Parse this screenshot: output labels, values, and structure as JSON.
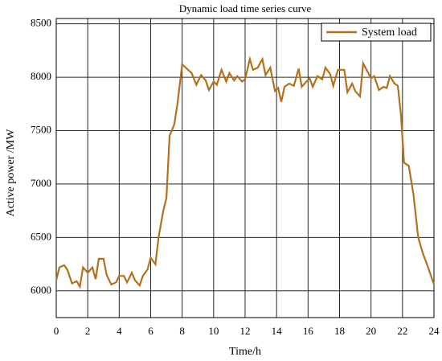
{
  "chart_data": {
    "type": "line",
    "title": "Dynamic load time series curve",
    "x_label": "Time/h",
    "y_label": "Active power /MW",
    "xlim": [
      0,
      24
    ],
    "ylim": [
      5750,
      8550
    ],
    "xticks": [
      0,
      2,
      4,
      6,
      8,
      10,
      12,
      14,
      16,
      18,
      20,
      22,
      24
    ],
    "yticks": [
      6000,
      6500,
      7000,
      7500,
      8000,
      8500
    ],
    "grid": true,
    "legend": "upper right",
    "series": [
      {
        "name": "System load",
        "color": "#b5711a",
        "x": [
          0,
          0.2,
          0.5,
          0.7,
          1.0,
          1.3,
          1.5,
          1.7,
          2.0,
          2.3,
          2.5,
          2.7,
          3.0,
          3.2,
          3.5,
          3.8,
          4.0,
          4.3,
          4.5,
          4.8,
          5.0,
          5.3,
          5.5,
          5.8,
          6.0,
          6.3,
          6.5,
          6.8,
          7.0,
          7.2,
          7.5,
          7.7,
          8.0,
          8.3,
          8.6,
          8.9,
          9.2,
          9.5,
          9.7,
          10.0,
          10.2,
          10.5,
          10.8,
          11.0,
          11.3,
          11.5,
          11.8,
          12.0,
          12.3,
          12.5,
          12.8,
          13.1,
          13.3,
          13.6,
          13.9,
          14.1,
          14.3,
          14.5,
          14.8,
          15.1,
          15.4,
          15.6,
          15.9,
          16.1,
          16.3,
          16.6,
          16.9,
          17.1,
          17.4,
          17.6,
          17.9,
          18.3,
          18.5,
          18.8,
          19.0,
          19.3,
          19.5,
          20.0,
          20.2,
          20.5,
          20.8,
          21.0,
          21.2,
          21.5,
          21.7,
          21.9,
          22.1,
          22.4,
          22.7,
          23.0,
          23.3,
          23.6,
          24.0
        ],
        "values": [
          6100,
          6220,
          6240,
          6200,
          6070,
          6090,
          6040,
          6220,
          6170,
          6220,
          6110,
          6300,
          6300,
          6150,
          6060,
          6080,
          6140,
          6140,
          6080,
          6170,
          6100,
          6050,
          6140,
          6200,
          6310,
          6250,
          6500,
          6750,
          6870,
          7450,
          7560,
          7750,
          8120,
          8080,
          8040,
          7930,
          8020,
          7970,
          7880,
          7960,
          7930,
          8070,
          7960,
          8040,
          7970,
          8010,
          7960,
          7980,
          8170,
          8070,
          8090,
          8170,
          8020,
          8090,
          7870,
          7900,
          7770,
          7910,
          7940,
          7920,
          8080,
          7910,
          7960,
          7990,
          7910,
          8010,
          7980,
          8090,
          8030,
          7920,
          8070,
          8070,
          7860,
          7940,
          7870,
          7820,
          8130,
          7990,
          8010,
          7880,
          7910,
          7900,
          8010,
          7940,
          7920,
          7650,
          7200,
          7170,
          6900,
          6500,
          6350,
          6230,
          6060
        ]
      }
    ]
  }
}
